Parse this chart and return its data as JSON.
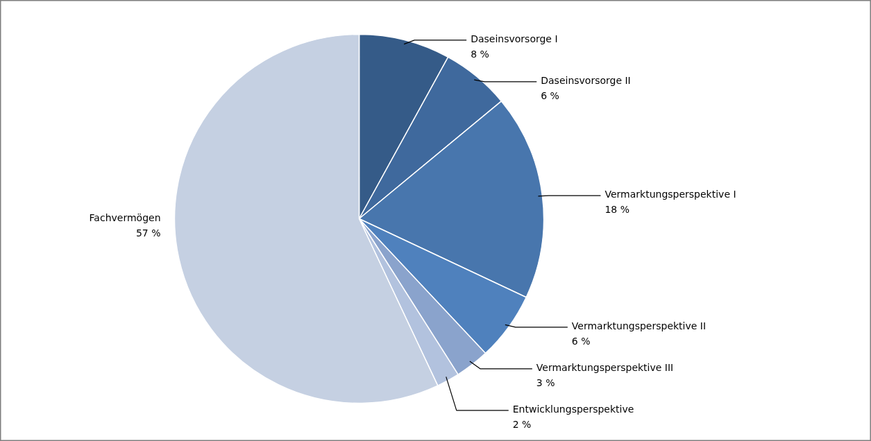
{
  "chart_data": {
    "type": "pie",
    "categories": [
      "Daseinsvorsorge I",
      "Daseinsvorsorge II",
      "Vermarktungsperspektive  I",
      "Vermarktungsperspektive  II",
      "Vermarktungsperspektive  III",
      "Entwicklungsperspektive",
      "Fachvermögen"
    ],
    "values": [
      8,
      6,
      18,
      6,
      3,
      2,
      57
    ],
    "value_labels": [
      "8 %",
      "6 %",
      "18 %",
      "6 %",
      "3 %",
      "2 %",
      "57 %"
    ],
    "colors": [
      "#355b88",
      "#3f699d",
      "#4876ad",
      "#4f81bd",
      "#8aa3cc",
      "#b2c2de",
      "#c5d0e2"
    ]
  }
}
